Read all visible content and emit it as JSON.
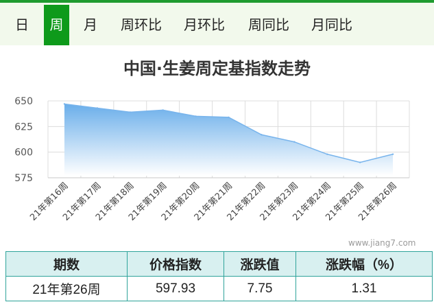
{
  "tabs": [
    {
      "label": "日",
      "active": false
    },
    {
      "label": "周",
      "active": true
    },
    {
      "label": "月",
      "active": false
    },
    {
      "label": "周环比",
      "active": false
    },
    {
      "label": "月环比",
      "active": false
    },
    {
      "label": "周同比",
      "active": false
    },
    {
      "label": "月同比",
      "active": false
    }
  ],
  "watermark": "www.jiang7.com",
  "colors": {
    "accent": "#0e9a1b",
    "area_top": "#6aaeea",
    "area_bottom": "#ffffff",
    "table_border": "#2ea39a",
    "table_header_bg": "#d8f0f0"
  },
  "chart_data": {
    "type": "area",
    "title": "中国·生姜周定基指数走势",
    "categories": [
      "21年第16周",
      "21年第17周",
      "21年第18周",
      "21年第19周",
      "21年第20周",
      "21年第21周",
      "21年第22周",
      "21年第23周",
      "21年第24周",
      "21年第25周",
      "21年第26周"
    ],
    "series": [
      {
        "values": [
          647,
          643,
          639,
          641,
          635,
          634,
          617,
          610,
          598,
          590,
          598
        ]
      }
    ],
    "ylim": [
      575,
      650
    ],
    "yticks": [
      650,
      625,
      600,
      575
    ],
    "grid": true,
    "xlabel": "",
    "ylabel": ""
  },
  "summary_table": {
    "headers": [
      "期数",
      "价格指数",
      "涨跌值",
      "涨跌幅（%）"
    ],
    "row": [
      "21年第26周",
      "597.93",
      "7.75",
      "1.31"
    ]
  }
}
